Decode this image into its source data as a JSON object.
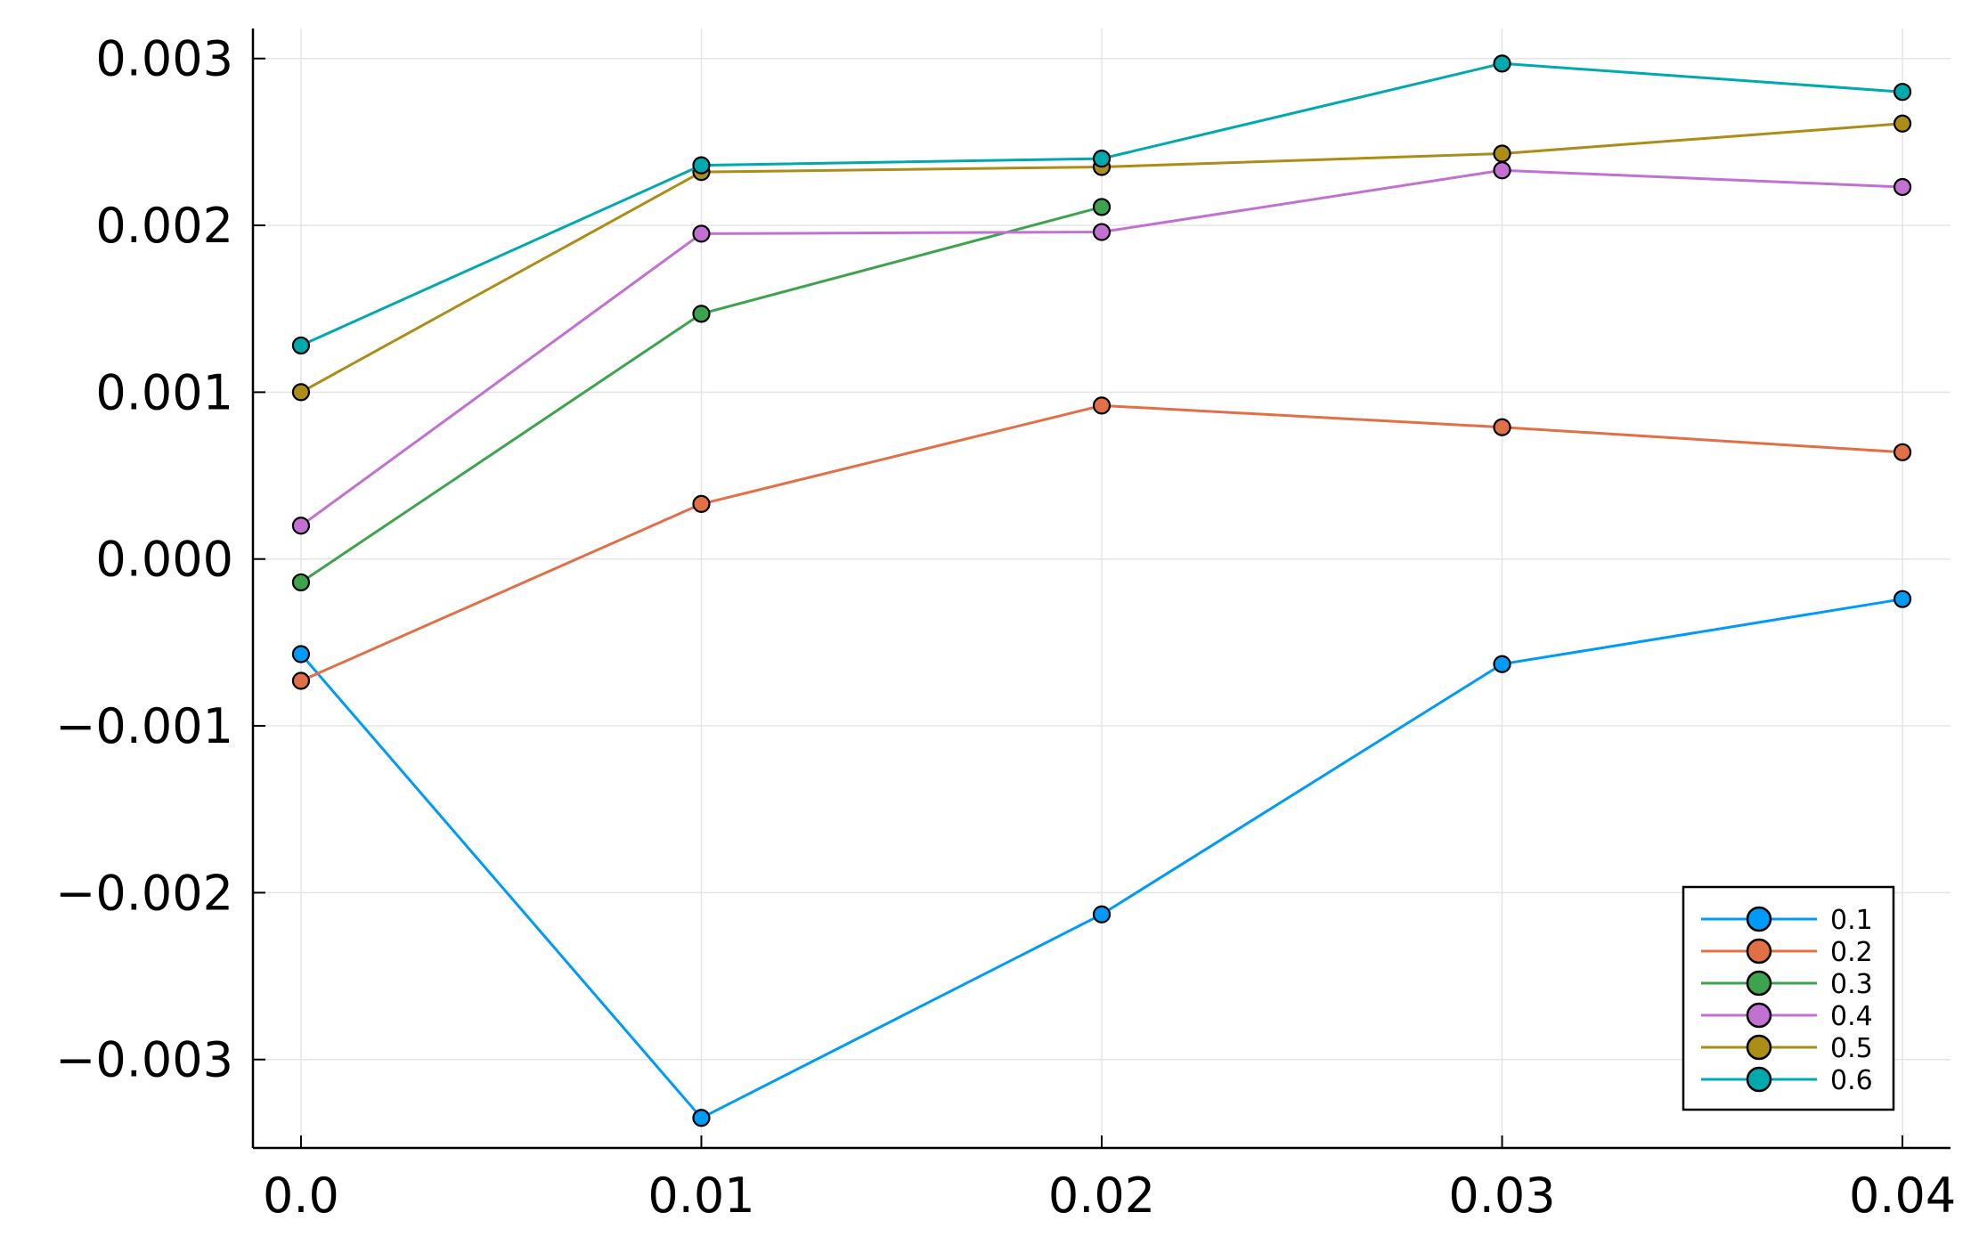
{
  "chart_data": {
    "type": "line",
    "title": "",
    "xlabel": "",
    "ylabel": "",
    "x": [
      0.0,
      0.01,
      0.02,
      0.03,
      0.04
    ],
    "xlim": [
      -0.0012,
      0.0412
    ],
    "ylim": [
      -0.00353,
      0.00318
    ],
    "xticks": [
      0.0,
      0.01,
      0.02,
      0.03,
      0.04
    ],
    "xtick_labels": [
      "0.0",
      "0.01",
      "0.02",
      "0.03",
      "0.04"
    ],
    "yticks": [
      -0.003,
      -0.002,
      -0.001,
      0.0,
      0.001,
      0.002,
      0.003
    ],
    "ytick_labels": [
      "−0.003",
      "−0.002",
      "−0.001",
      "0.000",
      "0.001",
      "0.002",
      "0.003"
    ],
    "grid": true,
    "legend_position": "bottom-right",
    "markers": true,
    "series": [
      {
        "name": "0.1",
        "color": "#009af9",
        "x": [
          0.0,
          0.01,
          0.02,
          0.03,
          0.04
        ],
        "values": [
          -0.00057,
          -0.00335,
          -0.00213,
          -0.00063,
          -0.00024
        ]
      },
      {
        "name": "0.2",
        "color": "#e26f46",
        "x": [
          0.0,
          0.01,
          0.02,
          0.03,
          0.04
        ],
        "values": [
          -0.00073,
          0.00033,
          0.00092,
          0.00079,
          0.00064
        ]
      },
      {
        "name": "0.3",
        "color": "#3da44d",
        "x": [
          0.0,
          0.01,
          0.02
        ],
        "values": [
          -0.00014,
          0.00147,
          0.00211
        ]
      },
      {
        "name": "0.4",
        "color": "#c271d2",
        "x": [
          0.0,
          0.01,
          0.02,
          0.03,
          0.04
        ],
        "values": [
          0.0002,
          0.00195,
          0.00196,
          0.00233,
          0.00223
        ]
      },
      {
        "name": "0.5",
        "color": "#ac8d18",
        "x": [
          0.0,
          0.01,
          0.02,
          0.03,
          0.04
        ],
        "values": [
          0.001,
          0.00232,
          0.00235,
          0.00243,
          0.00261
        ]
      },
      {
        "name": "0.6",
        "color": "#00a9ad",
        "x": [
          0.0,
          0.01,
          0.02,
          0.03,
          0.04
        ],
        "values": [
          0.00128,
          0.00236,
          0.0024,
          0.00297,
          0.0028
        ]
      }
    ]
  }
}
